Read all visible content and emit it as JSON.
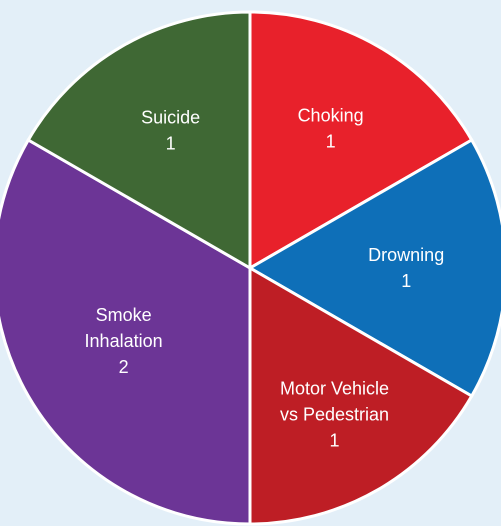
{
  "chart_data": {
    "type": "pie",
    "start_angle_deg": 0,
    "direction": "clockwise",
    "slices": [
      {
        "label_lines": [
          "Choking"
        ],
        "value": 1,
        "color": "#e8212b"
      },
      {
        "label_lines": [
          "Drowning"
        ],
        "value": 1,
        "color": "#0e6fb8"
      },
      {
        "label_lines": [
          "Motor Vehicle",
          "vs Pedestrian"
        ],
        "value": 1,
        "color": "#be1e25"
      },
      {
        "label_lines": [
          "Smoke",
          "Inhalation"
        ],
        "value": 2,
        "color": "#6c3596"
      },
      {
        "label_lines": [
          "Suicide"
        ],
        "value": 1,
        "color": "#3f6834"
      }
    ]
  }
}
